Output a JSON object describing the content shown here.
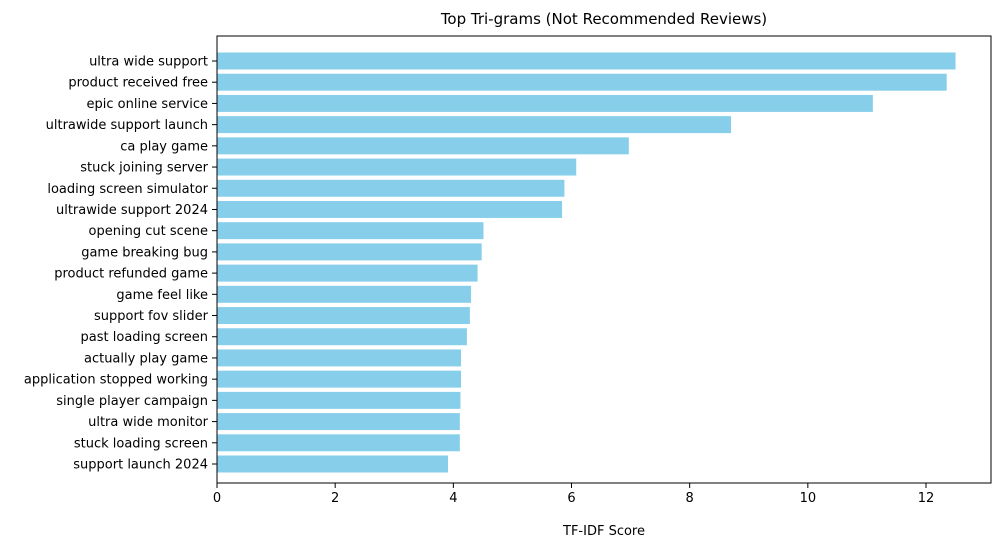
{
  "chart_data": {
    "type": "bar",
    "orientation": "horizontal",
    "title": "Top Tri-grams (Not Recommended Reviews)",
    "xlabel": "TF-IDF Score",
    "ylabel": "",
    "xlim": [
      0,
      13.1
    ],
    "xticks": [
      0,
      2,
      4,
      6,
      8,
      10,
      12
    ],
    "grid": false,
    "bar_color": "#87ceeb",
    "categories": [
      "ultra wide support",
      "product received free",
      "epic online service",
      "ultrawide support launch",
      "ca play game",
      "stuck joining server",
      "loading screen simulator",
      "ultrawide support 2024",
      "opening cut scene",
      "game breaking bug",
      "product refunded game",
      "game feel like",
      "support fov slider",
      "past loading screen",
      "actually play game",
      "application stopped working",
      "single player campaign",
      "ultra wide monitor",
      "stuck loading screen",
      "support launch 2024"
    ],
    "values": [
      12.5,
      12.35,
      11.1,
      8.7,
      6.97,
      6.08,
      5.88,
      5.84,
      4.51,
      4.48,
      4.41,
      4.3,
      4.28,
      4.23,
      4.13,
      4.13,
      4.12,
      4.11,
      4.11,
      3.91
    ]
  }
}
